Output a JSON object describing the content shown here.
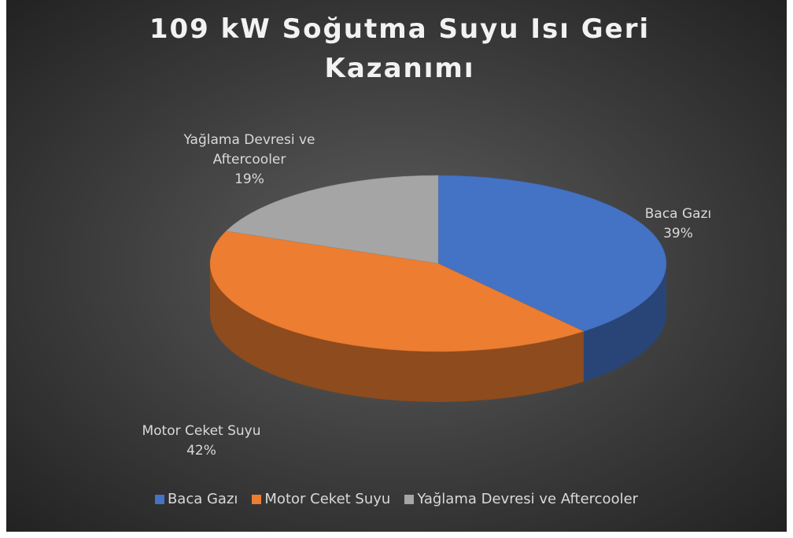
{
  "chart_data": {
    "type": "pie",
    "title": "109 kW Soğutma Suyu Isı Geri Kazanımı",
    "categories": [
      "Baca Gazı",
      "Motor Ceket Suyu",
      "Yağlama Devresi ve Aftercooler"
    ],
    "values": [
      39,
      42,
      19
    ],
    "value_labels": [
      "39%",
      "42%",
      "19%"
    ],
    "colors": [
      "#4472c4",
      "#ed7d31",
      "#a5a5a5"
    ],
    "legend": "bottom"
  }
}
